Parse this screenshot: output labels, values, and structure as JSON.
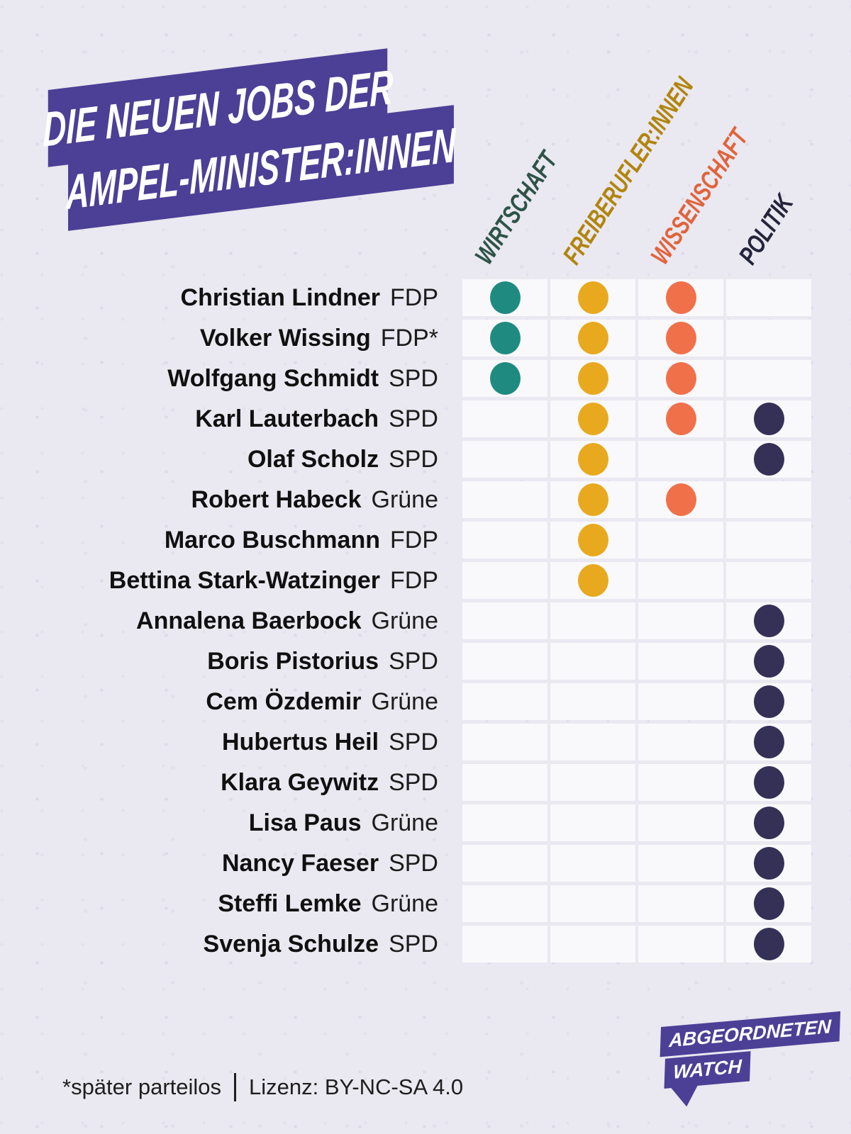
{
  "title": {
    "line1": "DIE NEUEN JOBS DER",
    "line2": "AMPEL-MINISTER:INNEN"
  },
  "colors": {
    "background": "#eae8f0",
    "cell": "#f9f8fb",
    "brand_purple": "#4c3f96",
    "text_dark": "#101010"
  },
  "columns": [
    {
      "id": "wirtschaft",
      "label": "WIRTSCHAFT",
      "label_color": "#2e5347",
      "dot_color": "#1f8b80"
    },
    {
      "id": "freiberufler",
      "label": "FREIBERUFLER:INNEN",
      "label_color": "#b1850d",
      "dot_color": "#e8a91e"
    },
    {
      "id": "wissenschaft",
      "label": "WISSENSCHAFT",
      "label_color": "#e0643c",
      "dot_color": "#f0704a"
    },
    {
      "id": "politik",
      "label": "POLITIK",
      "label_color": "#24243c",
      "dot_color": "#343056"
    }
  ],
  "rows": [
    {
      "name": "Christian Lindner",
      "party": "FDP",
      "jobs": [
        "wirtschaft",
        "freiberufler",
        "wissenschaft"
      ]
    },
    {
      "name": "Volker Wissing",
      "party": "FDP*",
      "jobs": [
        "wirtschaft",
        "freiberufler",
        "wissenschaft"
      ]
    },
    {
      "name": "Wolfgang Schmidt",
      "party": "SPD",
      "jobs": [
        "wirtschaft",
        "freiberufler",
        "wissenschaft"
      ]
    },
    {
      "name": "Karl Lauterbach",
      "party": "SPD",
      "jobs": [
        "freiberufler",
        "wissenschaft",
        "politik"
      ]
    },
    {
      "name": "Olaf Scholz",
      "party": "SPD",
      "jobs": [
        "freiberufler",
        "politik"
      ]
    },
    {
      "name": "Robert Habeck",
      "party": "Grüne",
      "jobs": [
        "freiberufler",
        "wissenschaft"
      ]
    },
    {
      "name": "Marco Buschmann",
      "party": "FDP",
      "jobs": [
        "freiberufler"
      ]
    },
    {
      "name": "Bettina Stark-Watzinger",
      "party": "FDP",
      "jobs": [
        "freiberufler"
      ]
    },
    {
      "name": "Annalena Baerbock",
      "party": "Grüne",
      "jobs": [
        "politik"
      ]
    },
    {
      "name": "Boris Pistorius",
      "party": "SPD",
      "jobs": [
        "politik"
      ]
    },
    {
      "name": "Cem Özdemir",
      "party": "Grüne",
      "jobs": [
        "politik"
      ]
    },
    {
      "name": "Hubertus Heil",
      "party": "SPD",
      "jobs": [
        "politik"
      ]
    },
    {
      "name": "Klara Geywitz",
      "party": "SPD",
      "jobs": [
        "politik"
      ]
    },
    {
      "name": "Lisa Paus",
      "party": "Grüne",
      "jobs": [
        "politik"
      ]
    },
    {
      "name": "Nancy Faeser",
      "party": "SPD",
      "jobs": [
        "politik"
      ]
    },
    {
      "name": "Steffi Lemke",
      "party": "Grüne",
      "jobs": [
        "politik"
      ]
    },
    {
      "name": "Svenja Schulze",
      "party": "SPD",
      "jobs": [
        "politik"
      ]
    }
  ],
  "footer": {
    "footnote": "*später parteilos",
    "license": "Lizenz: BY-NC-SA 4.0"
  },
  "logo": {
    "line1": "ABGEORDNETEN",
    "line2": "WATCH"
  },
  "chart_data": {
    "type": "heatmap",
    "title": "Die neuen Jobs der Ampel-Minister:innen",
    "categories": [
      "Wirtschaft",
      "Freiberufler:innen",
      "Wissenschaft",
      "Politik"
    ],
    "rows": [
      {
        "name": "Christian Lindner",
        "party": "FDP",
        "values": [
          1,
          1,
          1,
          0
        ]
      },
      {
        "name": "Volker Wissing",
        "party": "FDP*",
        "values": [
          1,
          1,
          1,
          0
        ]
      },
      {
        "name": "Wolfgang Schmidt",
        "party": "SPD",
        "values": [
          1,
          1,
          1,
          0
        ]
      },
      {
        "name": "Karl Lauterbach",
        "party": "SPD",
        "values": [
          0,
          1,
          1,
          1
        ]
      },
      {
        "name": "Olaf Scholz",
        "party": "SPD",
        "values": [
          0,
          1,
          0,
          1
        ]
      },
      {
        "name": "Robert Habeck",
        "party": "Grüne",
        "values": [
          0,
          1,
          1,
          0
        ]
      },
      {
        "name": "Marco Buschmann",
        "party": "FDP",
        "values": [
          0,
          1,
          0,
          0
        ]
      },
      {
        "name": "Bettina Stark-Watzinger",
        "party": "FDP",
        "values": [
          0,
          1,
          0,
          0
        ]
      },
      {
        "name": "Annalena Baerbock",
        "party": "Grüne",
        "values": [
          0,
          0,
          0,
          1
        ]
      },
      {
        "name": "Boris Pistorius",
        "party": "SPD",
        "values": [
          0,
          0,
          0,
          1
        ]
      },
      {
        "name": "Cem Özdemir",
        "party": "Grüne",
        "values": [
          0,
          0,
          0,
          1
        ]
      },
      {
        "name": "Hubertus Heil",
        "party": "SPD",
        "values": [
          0,
          0,
          0,
          1
        ]
      },
      {
        "name": "Klara Geywitz",
        "party": "SPD",
        "values": [
          0,
          0,
          0,
          1
        ]
      },
      {
        "name": "Lisa Paus",
        "party": "Grüne",
        "values": [
          0,
          0,
          0,
          1
        ]
      },
      {
        "name": "Nancy Faeser",
        "party": "SPD",
        "values": [
          0,
          0,
          0,
          1
        ]
      },
      {
        "name": "Steffi Lemke",
        "party": "Grüne",
        "values": [
          0,
          0,
          0,
          1
        ]
      },
      {
        "name": "Svenja Schulze",
        "party": "SPD",
        "values": [
          0,
          0,
          0,
          1
        ]
      }
    ],
    "legend_position": "top-rotated-column-headers",
    "grid": true
  }
}
